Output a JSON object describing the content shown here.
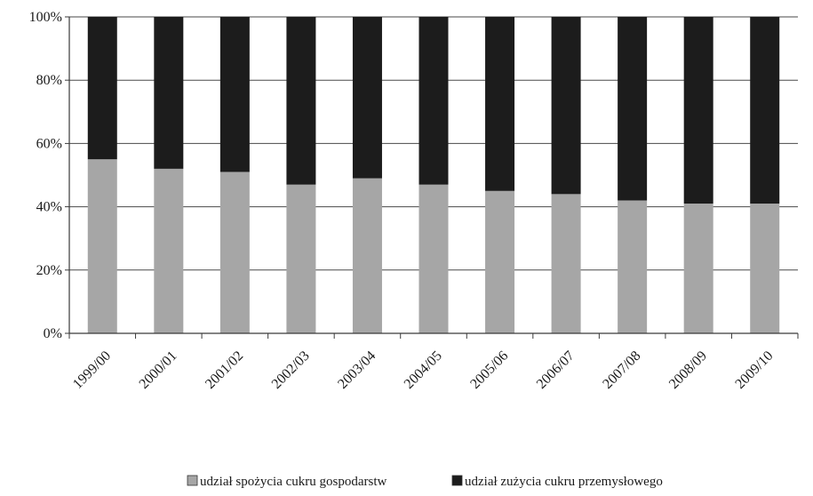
{
  "chart_data": {
    "type": "bar",
    "stacked": true,
    "percent": true,
    "categories": [
      "1999/00",
      "2000/01",
      "2001/02",
      "2002/03",
      "2003/04",
      "2004/05",
      "2005/06",
      "2006/07",
      "2007/08",
      "2008/09",
      "2009/10"
    ],
    "series": [
      {
        "name": "udział spożycia cukru gospodarstw",
        "color": "#a6a6a6",
        "values": [
          55,
          52,
          51,
          47,
          49,
          47,
          45,
          44,
          42,
          41,
          41
        ]
      },
      {
        "name": "udział zużycia cukru przemysłowego",
        "color": "#1c1c1c",
        "values": [
          45,
          48,
          49,
          53,
          51,
          53,
          55,
          56,
          58,
          59,
          59
        ]
      }
    ],
    "y_ticks": [
      "0%",
      "20%",
      "40%",
      "60%",
      "80%",
      "100%"
    ],
    "ylim": [
      0,
      100
    ],
    "grid": true,
    "legend_position": "bottom"
  }
}
